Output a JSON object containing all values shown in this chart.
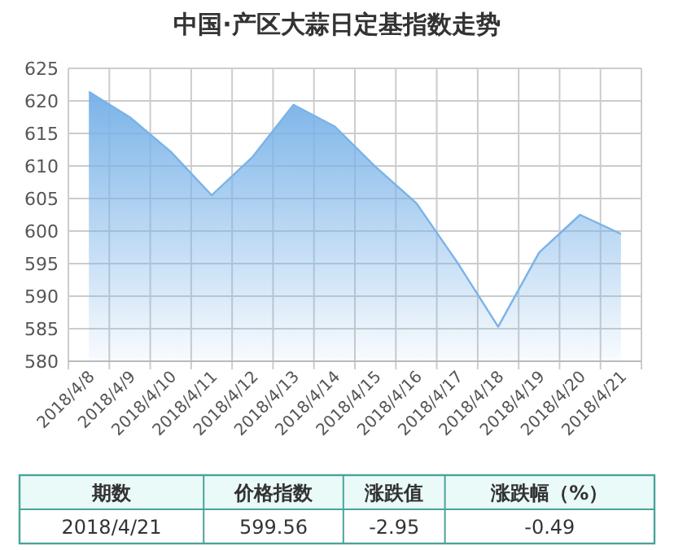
{
  "chart_data": {
    "type": "area",
    "title": "中国·产区大蒜日定基指数走势",
    "categories": [
      "2018/4/8",
      "2018/4/9",
      "2018/4/10",
      "2018/4/11",
      "2018/4/12",
      "2018/4/13",
      "2018/4/14",
      "2018/4/15",
      "2018/4/16",
      "2018/4/17",
      "2018/4/18",
      "2018/4/19",
      "2018/4/20",
      "2018/4/21"
    ],
    "series": [
      {
        "color": "#7ab3e8",
        "values": [
          621.4,
          617.5,
          612.2,
          605.5,
          611.4,
          619.4,
          616.1,
          609.9,
          604.3,
          595.2,
          585.3,
          596.7,
          602.5,
          599.56
        ]
      }
    ],
    "ylim": [
      580,
      625
    ],
    "yticks": [
      580,
      585,
      590,
      595,
      600,
      605,
      610,
      615,
      620,
      625
    ],
    "grid": true,
    "marker": "none",
    "annotations": [
      "期数",
      "价格指数",
      "涨跌值",
      "涨跌幅（%）",
      "2018/4/21",
      "599.56",
      "-2.95",
      "-0.49"
    ]
  }
}
